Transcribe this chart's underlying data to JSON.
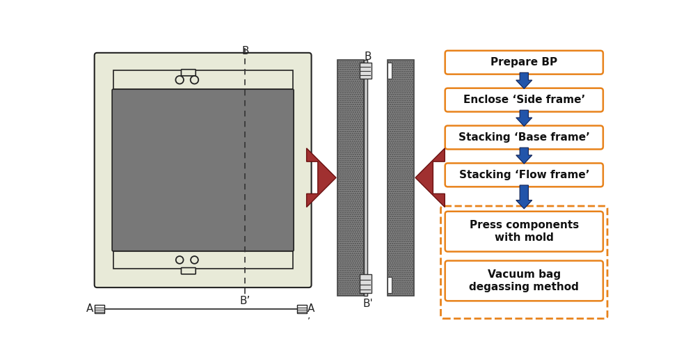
{
  "bg_color": "#ffffff",
  "frame_outer_color": "#e8ead8",
  "frame_inner_color": "#787878",
  "frame_border_color": "#222222",
  "orange_color": "#E8821A",
  "blue_arrow_color": "#2255AA",
  "red_arrow_color": "#A03030",
  "flow_steps_solid": [
    "Prepare BP",
    "Enclose ‘Side frame’",
    "Stacking ‘Base frame’",
    "Stacking ‘Flow frame’"
  ],
  "flow_steps_dashed": [
    "Press components\nwith mold",
    "Vacuum bag\ndegassing method"
  ],
  "label_B_top": "B",
  "label_B_bottom": "B’"
}
